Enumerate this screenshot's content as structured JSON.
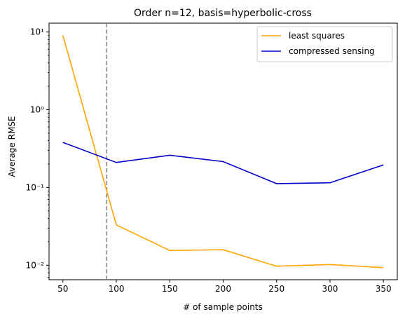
{
  "chart_data": {
    "type": "line",
    "title": "Order n=12, basis=hyperbolic-cross",
    "xlabel": "# of sample points",
    "ylabel": "Average RMSE",
    "yscale": "log",
    "x": [
      50,
      100,
      150,
      200,
      250,
      300,
      350
    ],
    "xlim": [
      37,
      363
    ],
    "ylim": [
      0.0065,
      13
    ],
    "x_ticks": [
      50,
      100,
      150,
      200,
      250,
      300,
      350
    ],
    "y_ticks": [
      {
        "value": 0.01,
        "label": "10⁻²"
      },
      {
        "value": 0.1,
        "label": "10⁻¹"
      },
      {
        "value": 1,
        "label": "10⁰"
      },
      {
        "value": 10,
        "label": "10¹"
      }
    ],
    "grid": false,
    "legend_position": "top-right",
    "series": [
      {
        "name": "least squares",
        "color": "#ffa500",
        "values": [
          9.0,
          0.033,
          0.0155,
          0.0158,
          0.0097,
          0.0102,
          0.0093
        ]
      },
      {
        "name": "compressed sensing",
        "color": "#0000cd",
        "values": [
          0.38,
          0.21,
          0.26,
          0.215,
          0.112,
          0.115,
          0.195
        ]
      }
    ],
    "vline": {
      "x": 91,
      "color": "#808080",
      "style": "dashed"
    }
  }
}
